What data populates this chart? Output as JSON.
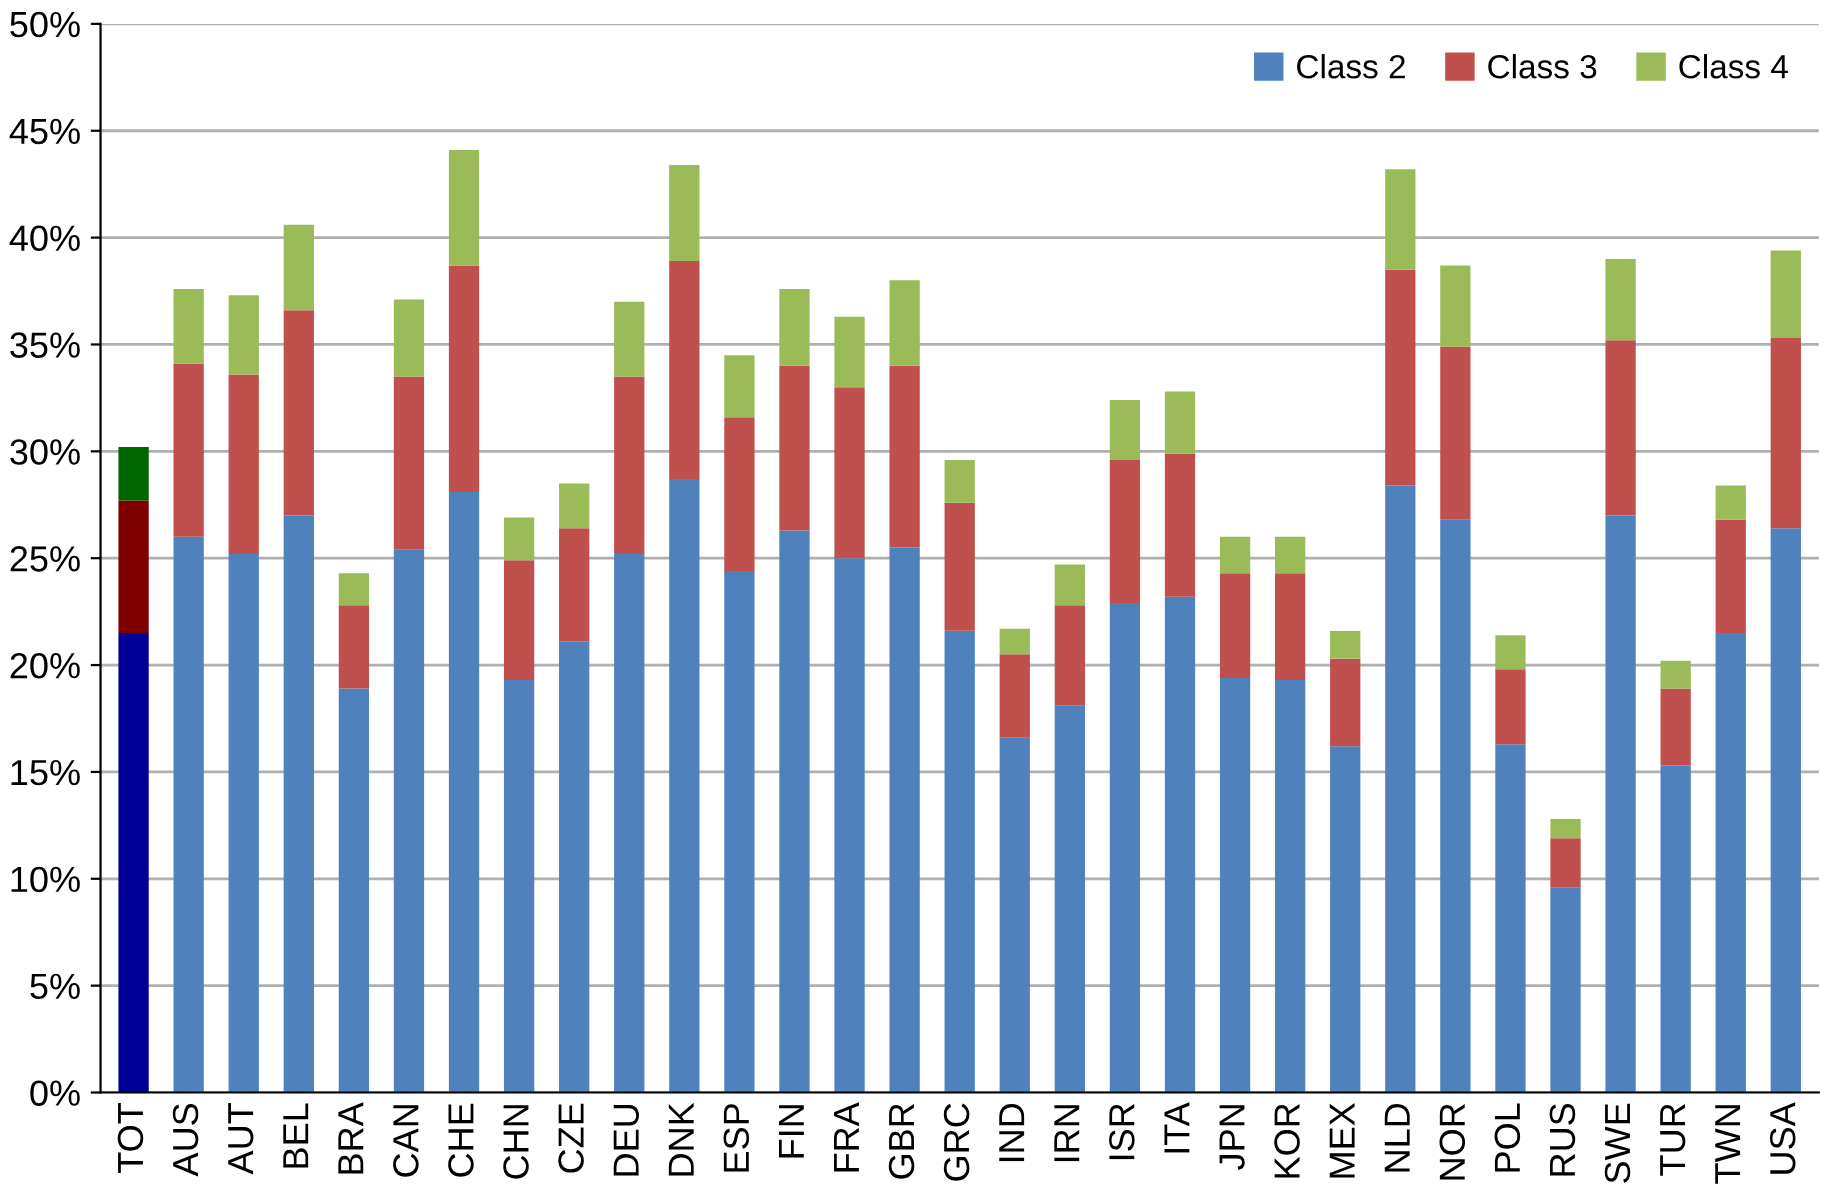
{
  "chart_data": {
    "type": "bar",
    "stacked": true,
    "categories": [
      "TOT",
      "AUS",
      "AUT",
      "BEL",
      "BRA",
      "CAN",
      "CHE",
      "CHN",
      "CZE",
      "DEU",
      "DNK",
      "ESP",
      "FIN",
      "FRA",
      "GBR",
      "GRC",
      "IND",
      "IRN",
      "ISR",
      "ITA",
      "JPN",
      "KOR",
      "MEX",
      "NLD",
      "NOR",
      "POL",
      "RUS",
      "SWE",
      "TUR",
      "TWN",
      "USA"
    ],
    "series": [
      {
        "name": "Class 2",
        "color": "#4f81bd",
        "colors": [
          "#000099",
          "#4f81bd",
          "#4f81bd",
          "#4f81bd",
          "#4f81bd",
          "#4f81bd",
          "#4f81bd",
          "#4f81bd",
          "#4f81bd",
          "#4f81bd",
          "#4f81bd",
          "#4f81bd",
          "#4f81bd",
          "#4f81bd",
          "#4f81bd",
          "#4f81bd",
          "#4f81bd",
          "#4f81bd",
          "#4f81bd",
          "#4f81bd",
          "#4f81bd",
          "#4f81bd",
          "#4f81bd",
          "#4f81bd",
          "#4f81bd",
          "#4f81bd",
          "#4f81bd",
          "#4f81bd",
          "#4f81bd",
          "#4f81bd",
          "#4f81bd"
        ],
        "values": [
          21.5,
          26.0,
          25.2,
          27.0,
          18.9,
          25.4,
          28.1,
          19.3,
          21.1,
          25.2,
          28.7,
          24.4,
          26.3,
          25.0,
          25.5,
          21.6,
          16.6,
          18.1,
          22.9,
          23.2,
          19.4,
          19.3,
          16.2,
          28.4,
          26.8,
          16.3,
          9.6,
          27.0,
          15.3,
          21.5,
          26.4
        ]
      },
      {
        "name": "Class 3",
        "color": "#c0504d",
        "colors": [
          "#800000",
          "#c0504d",
          "#c0504d",
          "#c0504d",
          "#c0504d",
          "#c0504d",
          "#c0504d",
          "#c0504d",
          "#c0504d",
          "#c0504d",
          "#c0504d",
          "#c0504d",
          "#c0504d",
          "#c0504d",
          "#c0504d",
          "#c0504d",
          "#c0504d",
          "#c0504d",
          "#c0504d",
          "#c0504d",
          "#c0504d",
          "#c0504d",
          "#c0504d",
          "#c0504d",
          "#c0504d",
          "#c0504d",
          "#c0504d",
          "#c0504d",
          "#c0504d",
          "#c0504d",
          "#c0504d"
        ],
        "values": [
          6.2,
          8.1,
          8.4,
          9.6,
          3.9,
          8.1,
          10.6,
          5.6,
          5.3,
          8.3,
          10.2,
          7.2,
          7.7,
          8.0,
          8.5,
          6.0,
          3.9,
          4.7,
          6.7,
          6.7,
          4.9,
          5.0,
          4.1,
          10.1,
          8.1,
          3.5,
          2.3,
          8.2,
          3.6,
          5.3,
          8.9
        ]
      },
      {
        "name": "Class 4",
        "color": "#9bbb59",
        "colors": [
          "#006600",
          "#9bbb59",
          "#9bbb59",
          "#9bbb59",
          "#9bbb59",
          "#9bbb59",
          "#9bbb59",
          "#9bbb59",
          "#9bbb59",
          "#9bbb59",
          "#9bbb59",
          "#9bbb59",
          "#9bbb59",
          "#9bbb59",
          "#9bbb59",
          "#9bbb59",
          "#9bbb59",
          "#9bbb59",
          "#9bbb59",
          "#9bbb59",
          "#9bbb59",
          "#9bbb59",
          "#9bbb59",
          "#9bbb59",
          "#9bbb59",
          "#9bbb59",
          "#9bbb59",
          "#9bbb59",
          "#9bbb59",
          "#9bbb59",
          "#9bbb59"
        ],
        "values": [
          2.5,
          3.5,
          3.7,
          4.0,
          1.5,
          3.6,
          5.4,
          2.0,
          2.1,
          3.5,
          4.5,
          2.9,
          3.6,
          3.3,
          4.0,
          2.0,
          1.2,
          1.9,
          2.8,
          2.9,
          1.7,
          1.7,
          1.3,
          4.7,
          3.8,
          1.6,
          0.9,
          3.8,
          1.3,
          1.6,
          4.1
        ]
      }
    ],
    "ylim": [
      0,
      50
    ],
    "yticks": [
      {
        "value": 0,
        "label": "0%"
      },
      {
        "value": 5,
        "label": "5%"
      },
      {
        "value": 10,
        "label": "10%"
      },
      {
        "value": 15,
        "label": "15%"
      },
      {
        "value": 20,
        "label": "20%"
      },
      {
        "value": 25,
        "label": "25%"
      },
      {
        "value": 30,
        "label": "30%"
      },
      {
        "value": 35,
        "label": "35%"
      },
      {
        "value": 40,
        "label": "40%"
      },
      {
        "value": 45,
        "label": "45%"
      },
      {
        "value": 50,
        "label": "50%"
      }
    ],
    "grid": "y",
    "legend": "top right"
  }
}
